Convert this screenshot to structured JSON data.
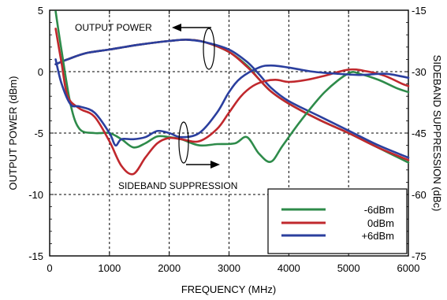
{
  "chart_data": {
    "type": "line",
    "title": "",
    "xlabel": "FREQUENCY (MHz)",
    "ylabel_left": "OUTPUT POWER (dBm)",
    "ylabel_right": "SIDEBAND SUPPRESSION (dBc)",
    "xlim": [
      0,
      6000
    ],
    "ylim_left": [
      -15,
      5
    ],
    "ylim_right": [
      -75,
      -15
    ],
    "x_ticks": [
      0,
      1000,
      2000,
      3000,
      4000,
      5000,
      6000
    ],
    "x_tick_labels": [
      "0",
      "1000",
      "2000",
      "3000",
      "4000",
      "5000",
      "6000"
    ],
    "y_left_ticks": [
      5,
      0,
      -5,
      -10,
      -15
    ],
    "y_left_tick_labels": [
      "5",
      "0",
      "-5",
      "-10",
      "-15"
    ],
    "y_right_ticks": [
      -15,
      -30,
      -45,
      -60,
      -75
    ],
    "y_right_tick_labels": [
      "-15",
      "-30",
      "-45",
      "-60",
      "-75"
    ],
    "grid": true,
    "legend_position": "bottom-right",
    "annotations": {
      "output_power": "OUTPUT POWER",
      "sideband_suppression": "SIDEBAND SUPPRESSION"
    },
    "series": [
      {
        "name": "-6dBm",
        "color": "#2e8b4a",
        "quantity": "output_power",
        "axis": "left",
        "x": [
          100,
          300,
          600,
          1000,
          1500,
          2000,
          2300,
          2600,
          3000,
          3300,
          3500,
          3700,
          4000,
          4500,
          5000,
          5500,
          6000
        ],
        "y": [
          0.6,
          1.0,
          1.5,
          1.8,
          2.2,
          2.5,
          2.6,
          2.4,
          1.6,
          0.5,
          -0.6,
          -1.6,
          -2.6,
          -3.9,
          -5.0,
          -6.2,
          -7.4
        ]
      },
      {
        "name": "0dBm",
        "color": "#c0282d",
        "quantity": "output_power",
        "axis": "left",
        "x": [
          100,
          300,
          600,
          1000,
          1500,
          2000,
          2300,
          2600,
          3000,
          3300,
          3500,
          3700,
          4000,
          4500,
          5000,
          5500,
          6000
        ],
        "y": [
          0.6,
          1.0,
          1.5,
          1.8,
          2.2,
          2.5,
          2.6,
          2.4,
          1.6,
          0.4,
          -0.6,
          -1.6,
          -2.6,
          -3.9,
          -5.0,
          -6.2,
          -7.2
        ]
      },
      {
        "name": "+6dBm",
        "color": "#2b3f9e",
        "quantity": "output_power",
        "axis": "left",
        "x": [
          100,
          300,
          600,
          1000,
          1500,
          2000,
          2300,
          2600,
          3000,
          3300,
          3500,
          3700,
          4000,
          4500,
          5000,
          5500,
          6000
        ],
        "y": [
          0.6,
          1.0,
          1.5,
          1.8,
          2.2,
          2.5,
          2.6,
          2.4,
          1.8,
          0.8,
          -0.2,
          -1.3,
          -2.4,
          -3.6,
          -4.8,
          -6.0,
          -7.0
        ]
      },
      {
        "name": "-6dBm",
        "color": "#2e8b4a",
        "quantity": "sideband_suppression",
        "axis": "right",
        "x": [
          100,
          200,
          350,
          500,
          750,
          1000,
          1200,
          1400,
          1600,
          1800,
          2000,
          2200,
          2500,
          2800,
          3100,
          3300,
          3500,
          3700,
          3900,
          4200,
          4600,
          5000,
          5200,
          5500,
          5800,
          6000
        ],
        "y": [
          -15.3,
          -25,
          -38,
          -44,
          -45,
          -45,
          -46.5,
          -48.5,
          -47.5,
          -45.8,
          -46,
          -46.5,
          -48,
          -47.7,
          -47.5,
          -46,
          -50,
          -52,
          -48,
          -42,
          -35,
          -30.4,
          -30.6,
          -32,
          -34,
          -35
        ]
      },
      {
        "name": "0dBm",
        "color": "#c0282d",
        "quantity": "sideband_suppression",
        "axis": "right",
        "x": [
          100,
          200,
          300,
          500,
          750,
          1000,
          1200,
          1400,
          1600,
          1800,
          2000,
          2200,
          2500,
          2800,
          3000,
          3200,
          3400,
          3600,
          3800,
          4000,
          4300,
          4600,
          5000,
          5300,
          5600,
          5900,
          6000
        ],
        "y": [
          -19.5,
          -28,
          -36,
          -39,
          -41,
          -47,
          -53,
          -55,
          -51,
          -47.5,
          -46.2,
          -46.5,
          -47,
          -44,
          -40,
          -36,
          -33.5,
          -32.3,
          -32,
          -32.5,
          -32,
          -31,
          -29.5,
          -29.9,
          -31,
          -33,
          -33.5
        ]
      },
      {
        "name": "+6dBm",
        "color": "#2b3f9e",
        "quantity": "sideband_suppression",
        "axis": "right",
        "x": [
          100,
          200,
          350,
          500,
          750,
          1000,
          1100,
          1200,
          1400,
          1600,
          1800,
          2000,
          2200,
          2500,
          2800,
          3000,
          3200,
          3500,
          3700,
          4000,
          4400,
          4800,
          5200,
          5600,
          5900,
          6000
        ],
        "y": [
          -27,
          -33,
          -38,
          -38.5,
          -40,
          -45,
          -48,
          -46.5,
          -46.5,
          -46,
          -44.5,
          -45,
          -46,
          -45,
          -40,
          -35,
          -31.5,
          -29,
          -28.5,
          -29,
          -30,
          -30.5,
          -30.8,
          -30.5,
          -31.2,
          -31.5
        ]
      }
    ]
  }
}
